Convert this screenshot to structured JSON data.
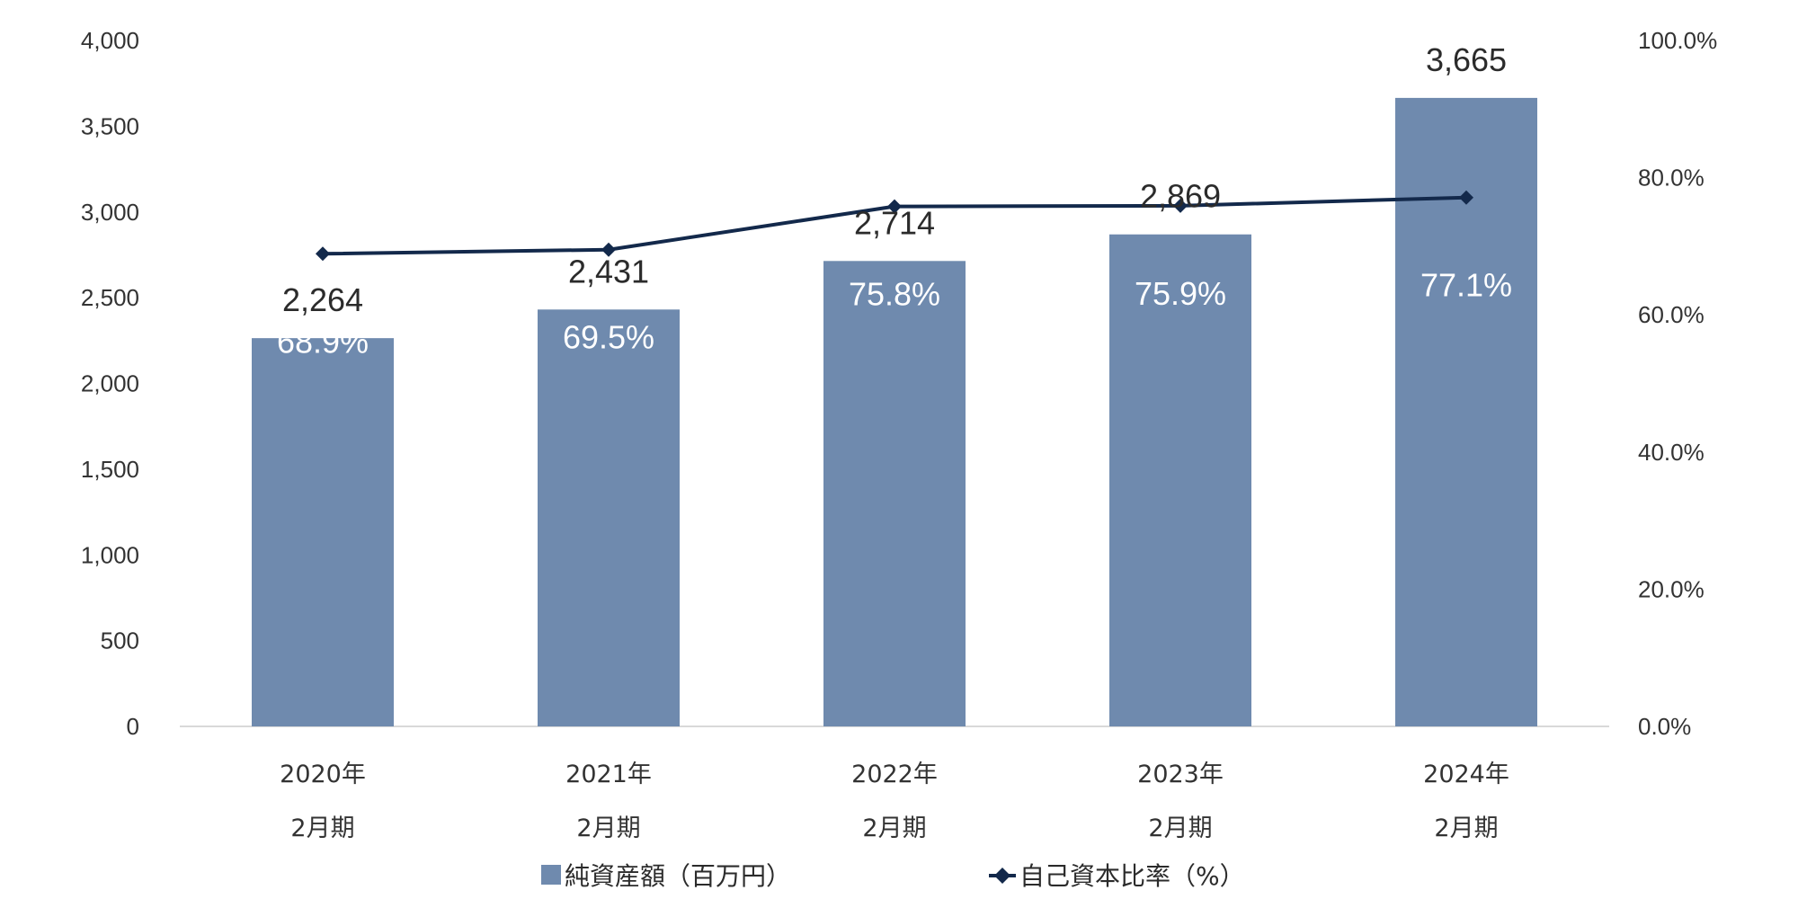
{
  "chart_data": {
    "type": "bar",
    "categories": [
      [
        "2020年",
        "2月期"
      ],
      [
        "2021年",
        "2月期"
      ],
      [
        "2022年",
        "2月期"
      ],
      [
        "2023年",
        "2月期"
      ],
      [
        "2024年",
        "2月期"
      ]
    ],
    "series": [
      {
        "name": "純資産額（百万円）",
        "type": "bar",
        "axis": "left",
        "values": [
          2264,
          2431,
          2714,
          2869,
          3665
        ],
        "labels": [
          "2,264",
          "2,431",
          "2,714",
          "2,869",
          "3,665"
        ],
        "color": "#6f8aae"
      },
      {
        "name": "自己資本比率（%）",
        "type": "line",
        "axis": "right",
        "values": [
          68.9,
          69.5,
          75.8,
          75.9,
          77.1
        ],
        "labels": [
          "68.9%",
          "69.5%",
          "75.8%",
          "75.9%",
          "77.1%"
        ],
        "color": "#13294b",
        "marker": "diamond"
      }
    ],
    "y_left": {
      "ylim": [
        0,
        4000
      ],
      "ticks": [
        0,
        500,
        1000,
        1500,
        2000,
        2500,
        3000,
        3500,
        4000
      ],
      "tick_labels": [
        "0",
        "500",
        "1,000",
        "1,500",
        "2,000",
        "2,500",
        "3,000",
        "3,500",
        "4,000"
      ]
    },
    "y_right": {
      "ylim": [
        0,
        100
      ],
      "ticks": [
        0,
        20,
        40,
        60,
        80,
        100
      ],
      "tick_labels": [
        "0.0%",
        "20.0%",
        "40.0%",
        "60.0%",
        "80.0%",
        "100.0%"
      ]
    },
    "title": "",
    "xlabel": "",
    "ylabel": "",
    "legend_position": "bottom",
    "grid": false
  }
}
